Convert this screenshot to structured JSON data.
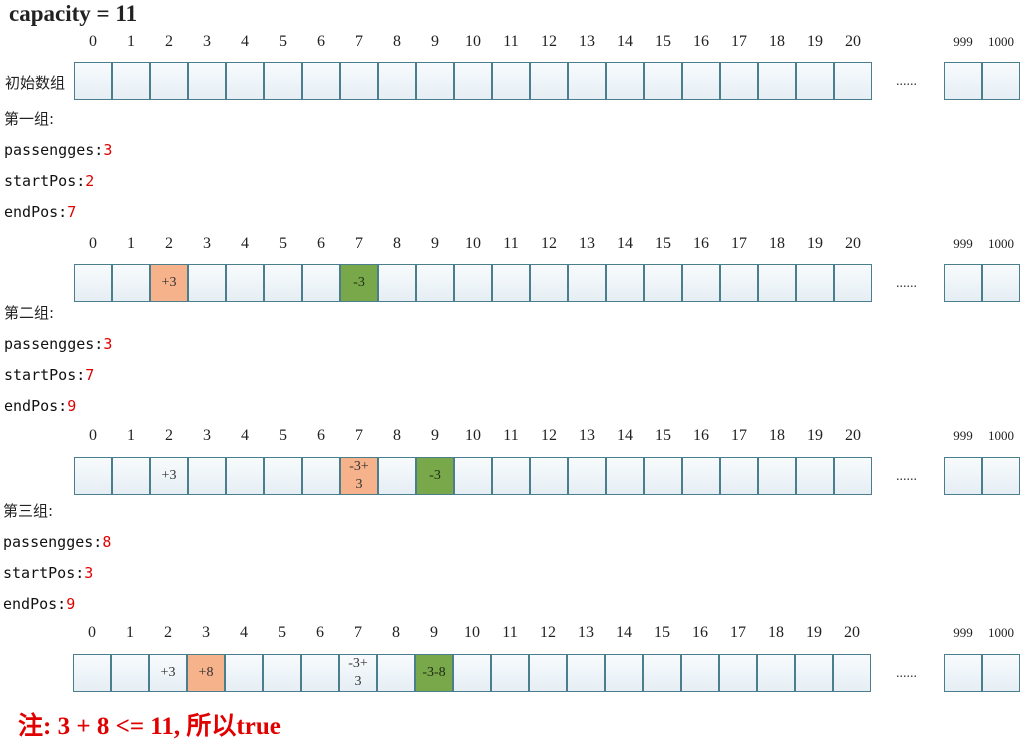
{
  "title": "capacity = 11",
  "indices": [
    "0",
    "1",
    "2",
    "3",
    "4",
    "5",
    "6",
    "7",
    "8",
    "9",
    "10",
    "11",
    "12",
    "13",
    "14",
    "15",
    "16",
    "17",
    "18",
    "19",
    "20"
  ],
  "end_indices": [
    "999",
    "1000"
  ],
  "ellipsis": "......",
  "initial_label": "初始数组",
  "groups": [
    {
      "label": "第一组:",
      "passengers_key": "passengges:",
      "passengers": "3",
      "start_key": "startPos:",
      "start": "2",
      "end_key": "endPos:",
      "end": "7"
    },
    {
      "label": "第二组:",
      "passengers_key": "passengges:",
      "passengers": "3",
      "start_key": "startPos:",
      "start": "7",
      "end_key": "endPos:",
      "end": "9"
    },
    {
      "label": "第三组:",
      "passengers_key": "passengges:",
      "passengers": "8",
      "start_key": "startPos:",
      "start": "3",
      "end_key": "endPos:",
      "end": "9"
    }
  ],
  "arrays": [
    {
      "cells": {}
    },
    {
      "cells": {
        "2": {
          "text": "+3",
          "color": "orange"
        },
        "7": {
          "text": "-3",
          "color": "green"
        }
      }
    },
    {
      "cells": {
        "2": {
          "text": "+3"
        },
        "7": {
          "text": "-3+\n3",
          "color": "orange"
        },
        "9": {
          "text": "-3",
          "color": "green"
        }
      }
    },
    {
      "cells": {
        "2": {
          "text": "+3"
        },
        "3": {
          "text": "+8",
          "color": "orange"
        },
        "7": {
          "text": "-3+\n3"
        },
        "9": {
          "text": "-3-8",
          "color": "green"
        }
      }
    }
  ],
  "colors": {
    "orange": "#f6b28a",
    "green": "#79a84b",
    "note": "#e00000"
  },
  "note": "注: 3 + 8 <= 11, 所以true"
}
